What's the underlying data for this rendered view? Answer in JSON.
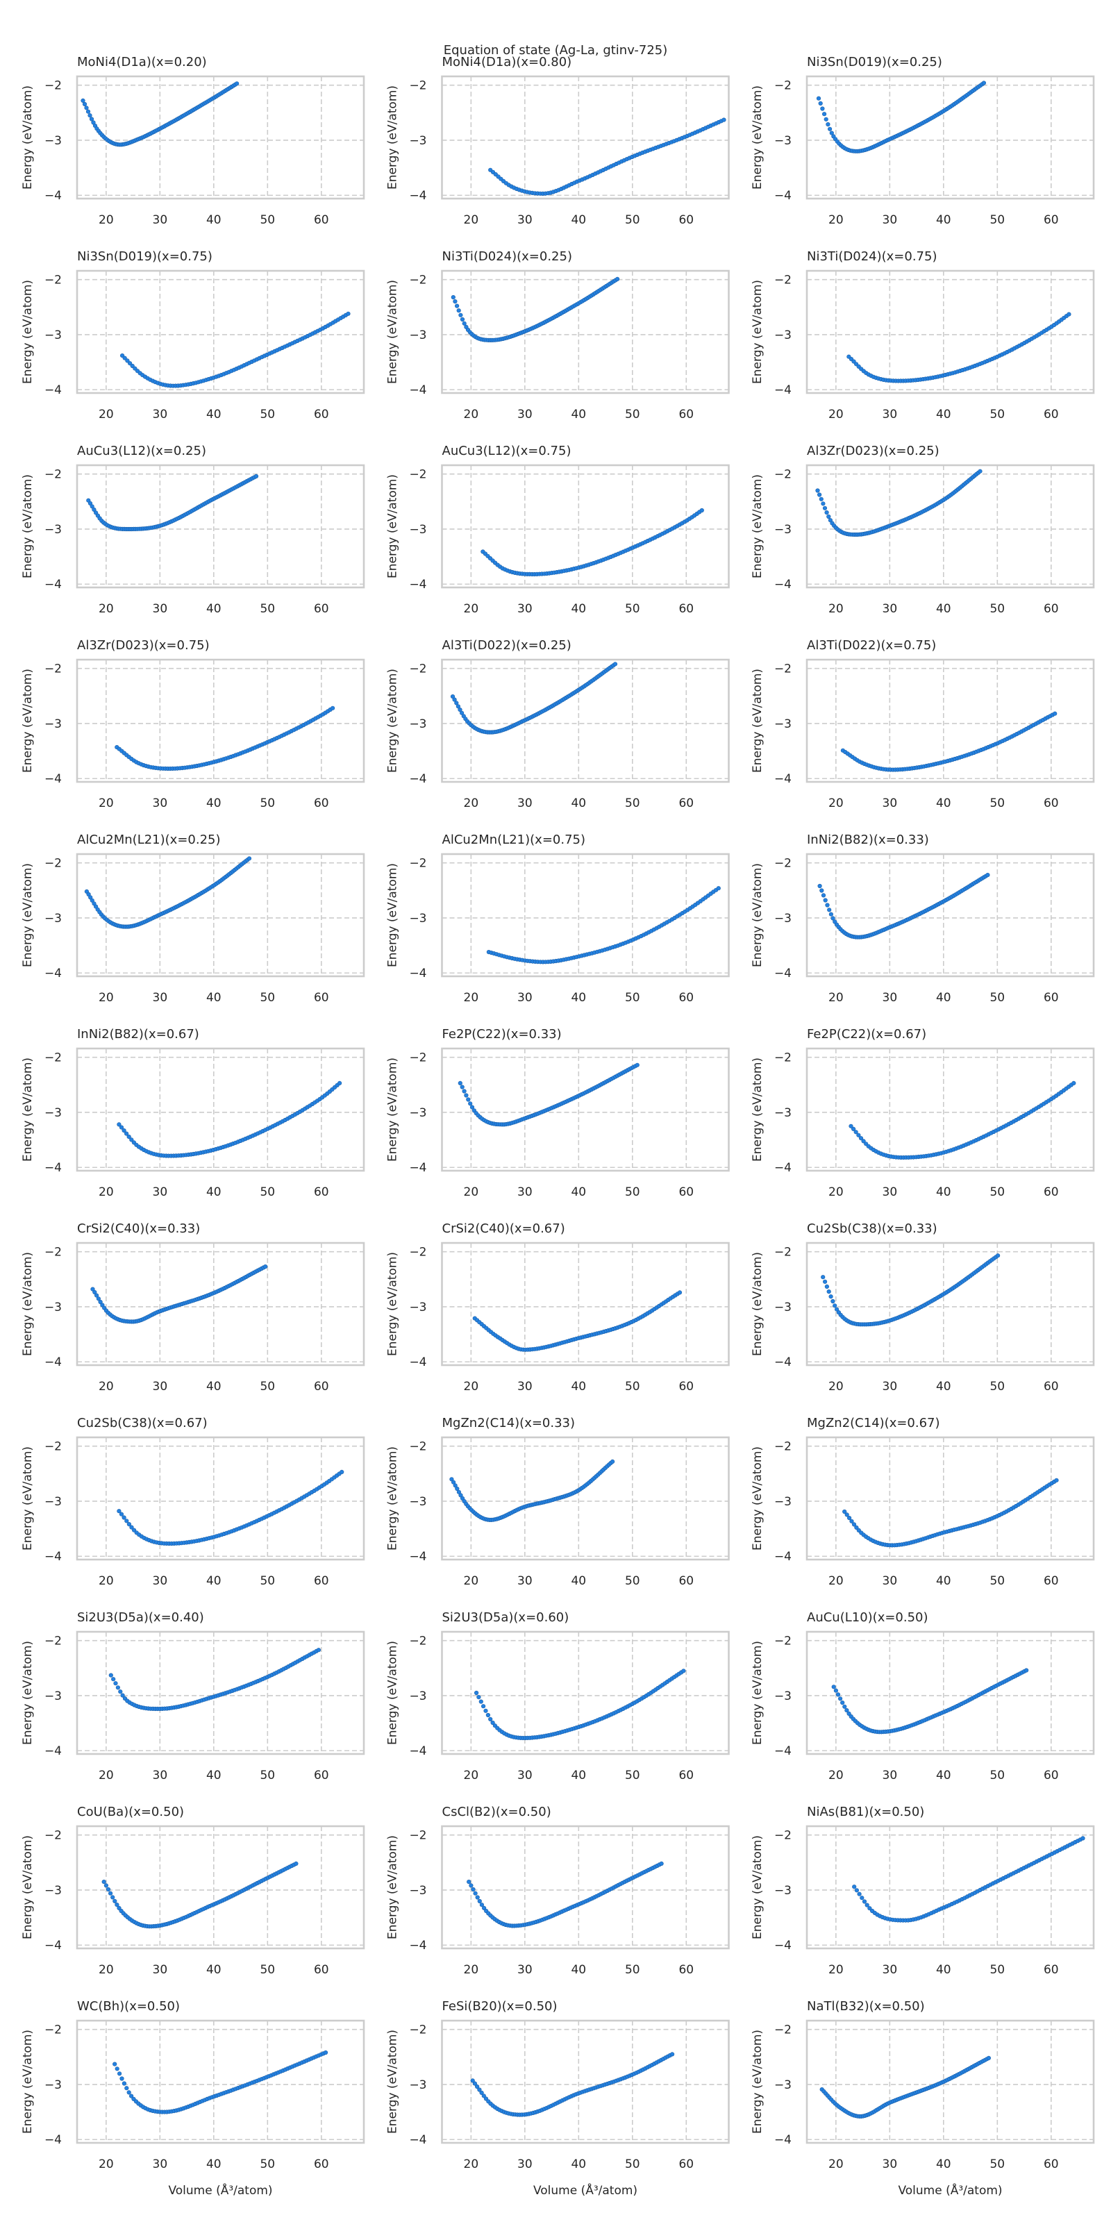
{
  "chart_data": {
    "type": "scatter",
    "title": "Equation of state (Ag-La, gtinv-725)",
    "xlabel": "Volume (Å³/atom)",
    "ylabel": "Energy (eV/atom)",
    "xlim": [
      14.6,
      67.9
    ],
    "ylim": [
      -4.06,
      -1.84
    ],
    "xticks": [
      20,
      30,
      40,
      50,
      60
    ],
    "yticks": [
      -2,
      -3,
      -4
    ],
    "ytick_labels": [
      "−2",
      "−3",
      "−4"
    ],
    "grid": true,
    "layout": "11 rows x 3 columns",
    "color": "#2481e0",
    "panels": [
      {
        "title": "MoNi4(D1a)(x=0.20)",
        "points": [
          [
            15.7,
            -2.28
          ],
          [
            18.5,
            -2.82
          ],
          [
            22.6,
            -3.08
          ],
          [
            26,
            -2.98
          ],
          [
            30,
            -2.79
          ],
          [
            40,
            -2.23
          ],
          [
            44.3,
            -1.97
          ]
        ]
      },
      {
        "title": "MoNi4(D1a)(x=0.80)",
        "points": [
          [
            23.6,
            -3.54
          ],
          [
            27.5,
            -3.84
          ],
          [
            33.4,
            -3.97
          ],
          [
            40,
            -3.74
          ],
          [
            50,
            -3.3
          ],
          [
            60,
            -2.93
          ],
          [
            67,
            -2.63
          ]
        ]
      },
      {
        "title": "Ni3Sn(D019)(x=0.25)",
        "points": [
          [
            16.8,
            -2.24
          ],
          [
            19.5,
            -2.92
          ],
          [
            23.8,
            -3.2
          ],
          [
            30,
            -2.98
          ],
          [
            40,
            -2.47
          ],
          [
            47.5,
            -1.96
          ]
        ]
      },
      {
        "title": "Ni3Sn(D019)(x=0.75)",
        "points": [
          [
            23,
            -3.38
          ],
          [
            27,
            -3.75
          ],
          [
            32.5,
            -3.93
          ],
          [
            40,
            -3.78
          ],
          [
            50,
            -3.36
          ],
          [
            60,
            -2.9
          ],
          [
            65,
            -2.62
          ]
        ]
      },
      {
        "title": "Ni3Ti(D024)(x=0.25)",
        "points": [
          [
            16.7,
            -2.32
          ],
          [
            19.5,
            -2.92
          ],
          [
            23.8,
            -3.1
          ],
          [
            30,
            -2.94
          ],
          [
            40,
            -2.43
          ],
          [
            47.2,
            -1.99
          ]
        ]
      },
      {
        "title": "Ni3Ti(D024)(x=0.75)",
        "points": [
          [
            22.4,
            -3.4
          ],
          [
            26,
            -3.72
          ],
          [
            31.7,
            -3.84
          ],
          [
            40,
            -3.74
          ],
          [
            50,
            -3.4
          ],
          [
            60,
            -2.86
          ],
          [
            63.3,
            -2.63
          ]
        ]
      },
      {
        "title": "AuCu3(L12)(x=0.25)",
        "points": [
          [
            16.7,
            -2.48
          ],
          [
            19.5,
            -2.88
          ],
          [
            24,
            -3.0
          ],
          [
            30,
            -2.94
          ],
          [
            40,
            -2.45
          ],
          [
            47.9,
            -2.04
          ]
        ]
      },
      {
        "title": "AuCu3(L12)(x=0.75)",
        "points": [
          [
            22.2,
            -3.41
          ],
          [
            26,
            -3.72
          ],
          [
            31.5,
            -3.82
          ],
          [
            40,
            -3.7
          ],
          [
            50,
            -3.34
          ],
          [
            60,
            -2.85
          ],
          [
            62.9,
            -2.66
          ]
        ]
      },
      {
        "title": "Al3Zr(D023)(x=0.25)",
        "points": [
          [
            16.6,
            -2.3
          ],
          [
            19.5,
            -2.92
          ],
          [
            23.8,
            -3.1
          ],
          [
            30,
            -2.94
          ],
          [
            40,
            -2.47
          ],
          [
            46.8,
            -1.95
          ]
        ]
      },
      {
        "title": "Al3Zr(D023)(x=0.75)",
        "points": [
          [
            22,
            -3.43
          ],
          [
            26,
            -3.72
          ],
          [
            31.8,
            -3.82
          ],
          [
            40,
            -3.7
          ],
          [
            50,
            -3.34
          ],
          [
            60,
            -2.85
          ],
          [
            62.1,
            -2.72
          ]
        ]
      },
      {
        "title": "Al3Ti(D022)(x=0.25)",
        "points": [
          [
            16.6,
            -2.51
          ],
          [
            19.5,
            -2.98
          ],
          [
            23.6,
            -3.16
          ],
          [
            30,
            -2.94
          ],
          [
            40,
            -2.39
          ],
          [
            46.8,
            -1.92
          ]
        ]
      },
      {
        "title": "Al3Ti(D022)(x=0.75)",
        "points": [
          [
            21.3,
            -3.49
          ],
          [
            25,
            -3.72
          ],
          [
            30.4,
            -3.84
          ],
          [
            40,
            -3.7
          ],
          [
            50,
            -3.36
          ],
          [
            60.7,
            -2.82
          ]
        ]
      },
      {
        "title": "AlCu2Mn(L21)(x=0.25)",
        "points": [
          [
            16.4,
            -2.52
          ],
          [
            19.5,
            -2.98
          ],
          [
            23.7,
            -3.16
          ],
          [
            30,
            -2.94
          ],
          [
            40,
            -2.41
          ],
          [
            46.6,
            -1.92
          ]
        ]
      },
      {
        "title": "AlCu2Mn(L21)(x=0.75)",
        "points": [
          [
            23.3,
            -3.62
          ],
          [
            28,
            -3.74
          ],
          [
            33.4,
            -3.8
          ],
          [
            40,
            -3.7
          ],
          [
            50,
            -3.4
          ],
          [
            60,
            -2.87
          ],
          [
            66,
            -2.46
          ]
        ]
      },
      {
        "title": "InNi2(B82)(x=0.33)",
        "points": [
          [
            17,
            -2.42
          ],
          [
            20,
            -3.1
          ],
          [
            24.2,
            -3.35
          ],
          [
            30,
            -3.17
          ],
          [
            40,
            -2.7
          ],
          [
            48.2,
            -2.22
          ]
        ]
      },
      {
        "title": "InNi2(B82)(x=0.67)",
        "points": [
          [
            22.4,
            -3.22
          ],
          [
            26,
            -3.62
          ],
          [
            31.8,
            -3.79
          ],
          [
            40,
            -3.68
          ],
          [
            50,
            -3.3
          ],
          [
            60,
            -2.74
          ],
          [
            63.4,
            -2.47
          ]
        ]
      },
      {
        "title": "Fe2P(C22)(x=0.33)",
        "points": [
          [
            18,
            -2.47
          ],
          [
            21,
            -3.02
          ],
          [
            25.9,
            -3.22
          ],
          [
            30,
            -3.11
          ],
          [
            40,
            -2.7
          ],
          [
            50.9,
            -2.14
          ]
        ]
      },
      {
        "title": "Fe2P(C22)(x=0.67)",
        "points": [
          [
            22.8,
            -3.25
          ],
          [
            26.5,
            -3.65
          ],
          [
            32.4,
            -3.82
          ],
          [
            40,
            -3.73
          ],
          [
            50,
            -3.32
          ],
          [
            60,
            -2.76
          ],
          [
            64.2,
            -2.47
          ]
        ]
      },
      {
        "title": "CrSi2(C40)(x=0.33)",
        "points": [
          [
            17.5,
            -2.68
          ],
          [
            20.5,
            -3.12
          ],
          [
            25,
            -3.27
          ],
          [
            30,
            -3.08
          ],
          [
            40,
            -2.75
          ],
          [
            49.6,
            -2.27
          ]
        ]
      },
      {
        "title": "CrSi2(C40)(x=0.67)",
        "points": [
          [
            20.7,
            -3.21
          ],
          [
            25,
            -3.55
          ],
          [
            29.9,
            -3.78
          ],
          [
            40,
            -3.57
          ],
          [
            50,
            -3.27
          ],
          [
            58.8,
            -2.74
          ]
        ]
      },
      {
        "title": "Cu2Sb(C38)(x=0.33)",
        "points": [
          [
            17.6,
            -2.46
          ],
          [
            20.5,
            -3.1
          ],
          [
            25.1,
            -3.32
          ],
          [
            30,
            -3.25
          ],
          [
            40,
            -2.77
          ],
          [
            50.1,
            -2.07
          ]
        ]
      },
      {
        "title": "Cu2Sb(C38)(x=0.67)",
        "points": [
          [
            22.4,
            -3.18
          ],
          [
            26,
            -3.6
          ],
          [
            31.8,
            -3.77
          ],
          [
            40,
            -3.65
          ],
          [
            50,
            -3.27
          ],
          [
            60,
            -2.73
          ],
          [
            63.8,
            -2.47
          ]
        ]
      },
      {
        "title": "MgZn2(C14)(x=0.33)",
        "points": [
          [
            16.4,
            -2.6
          ],
          [
            19.5,
            -3.1
          ],
          [
            23.6,
            -3.34
          ],
          [
            30,
            -3.1
          ],
          [
            35,
            -2.98
          ],
          [
            40,
            -2.8
          ],
          [
            46.3,
            -2.28
          ]
        ]
      },
      {
        "title": "MgZn2(C14)(x=0.67)",
        "points": [
          [
            21.6,
            -3.19
          ],
          [
            25,
            -3.6
          ],
          [
            30.4,
            -3.8
          ],
          [
            40,
            -3.57
          ],
          [
            50,
            -3.27
          ],
          [
            61,
            -2.62
          ]
        ]
      },
      {
        "title": "Si2U3(D5a)(x=0.40)",
        "points": [
          [
            20.9,
            -2.63
          ],
          [
            24,
            -3.1
          ],
          [
            29.9,
            -3.24
          ],
          [
            40,
            -3.02
          ],
          [
            50,
            -2.66
          ],
          [
            59.5,
            -2.17
          ]
        ]
      },
      {
        "title": "Si2U3(D5a)(x=0.60)",
        "points": [
          [
            21,
            -2.95
          ],
          [
            24.5,
            -3.55
          ],
          [
            29.9,
            -3.77
          ],
          [
            40,
            -3.57
          ],
          [
            50,
            -3.15
          ],
          [
            59.5,
            -2.55
          ]
        ]
      },
      {
        "title": "AuCu(L10)(x=0.50)",
        "points": [
          [
            19.6,
            -2.84
          ],
          [
            23,
            -3.4
          ],
          [
            28.2,
            -3.66
          ],
          [
            40,
            -3.3
          ],
          [
            50,
            -2.81
          ],
          [
            55.4,
            -2.54
          ]
        ]
      },
      {
        "title": "CoU(Ba)(x=0.50)",
        "points": [
          [
            19.6,
            -2.85
          ],
          [
            23,
            -3.4
          ],
          [
            28.2,
            -3.66
          ],
          [
            40,
            -3.26
          ],
          [
            50,
            -2.78
          ],
          [
            55.3,
            -2.52
          ]
        ]
      },
      {
        "title": "CsCl(B2)(x=0.50)",
        "points": [
          [
            19.6,
            -2.85
          ],
          [
            23,
            -3.4
          ],
          [
            27.8,
            -3.65
          ],
          [
            40,
            -3.26
          ],
          [
            50,
            -2.78
          ],
          [
            55.4,
            -2.52
          ]
        ]
      },
      {
        "title": "NiAs(B81)(x=0.50)",
        "points": [
          [
            23.4,
            -2.94
          ],
          [
            27,
            -3.4
          ],
          [
            33,
            -3.55
          ],
          [
            40,
            -3.32
          ],
          [
            50,
            -2.84
          ],
          [
            60,
            -2.35
          ],
          [
            65.9,
            -2.06
          ]
        ]
      },
      {
        "title": "WC(Bh)(x=0.50)",
        "points": [
          [
            21.6,
            -2.63
          ],
          [
            25,
            -3.25
          ],
          [
            30.8,
            -3.5
          ],
          [
            40,
            -3.22
          ],
          [
            50,
            -2.86
          ],
          [
            60.8,
            -2.42
          ]
        ]
      },
      {
        "title": "FeSi(B20)(x=0.50)",
        "points": [
          [
            20.3,
            -2.93
          ],
          [
            24,
            -3.38
          ],
          [
            29.2,
            -3.55
          ],
          [
            40,
            -3.16
          ],
          [
            50,
            -2.82
          ],
          [
            57.4,
            -2.45
          ]
        ]
      },
      {
        "title": "NaTl(B32)(x=0.50)",
        "points": [
          [
            17.4,
            -3.09
          ],
          [
            20.5,
            -3.4
          ],
          [
            24.5,
            -3.58
          ],
          [
            30,
            -3.33
          ],
          [
            40,
            -2.95
          ],
          [
            48.4,
            -2.52
          ]
        ]
      }
    ]
  }
}
